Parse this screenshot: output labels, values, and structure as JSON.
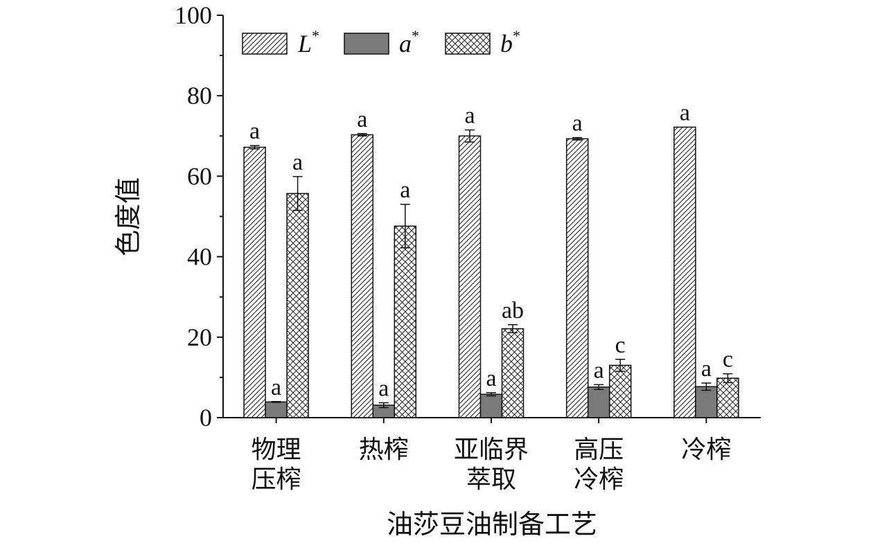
{
  "chart_data": {
    "type": "bar",
    "ylabel": "色度值",
    "xlabel": "油莎豆油制备工艺",
    "ylim": [
      0,
      100
    ],
    "yticks": [
      0,
      20,
      40,
      60,
      80,
      100
    ],
    "legend_position": "top",
    "categories": [
      {
        "lines": [
          "物理",
          "压榨"
        ]
      },
      {
        "lines": [
          "热榨"
        ]
      },
      {
        "lines": [
          "亚临界",
          "萃取"
        ]
      },
      {
        "lines": [
          "高压",
          "冷榨"
        ]
      },
      {
        "lines": [
          "冷榨"
        ]
      }
    ],
    "series": [
      {
        "name": "L",
        "sup": "*",
        "pattern": "diagonal",
        "values": [
          67.2,
          70.3,
          70.0,
          69.3,
          72.2
        ],
        "errors": [
          0.4,
          0.3,
          1.5,
          0.3,
          0.0
        ],
        "sig": [
          "a",
          "a",
          "a",
          "a",
          "a"
        ]
      },
      {
        "name": "a",
        "sup": "*",
        "pattern": "solid",
        "color": "#7a7a7a",
        "values": [
          3.9,
          3.1,
          5.8,
          7.6,
          7.7
        ],
        "errors": [
          0.1,
          0.6,
          0.4,
          0.6,
          0.9
        ],
        "sig": [
          "a",
          "a",
          "a",
          "a",
          "a"
        ]
      },
      {
        "name": "b",
        "sup": "*",
        "pattern": "crosshatch",
        "values": [
          55.7,
          47.6,
          22.1,
          13.0,
          9.8
        ],
        "errors": [
          4.2,
          5.4,
          1.0,
          1.5,
          1.1
        ],
        "sig": [
          "a",
          "a",
          "ab",
          "c",
          "c"
        ]
      }
    ]
  }
}
